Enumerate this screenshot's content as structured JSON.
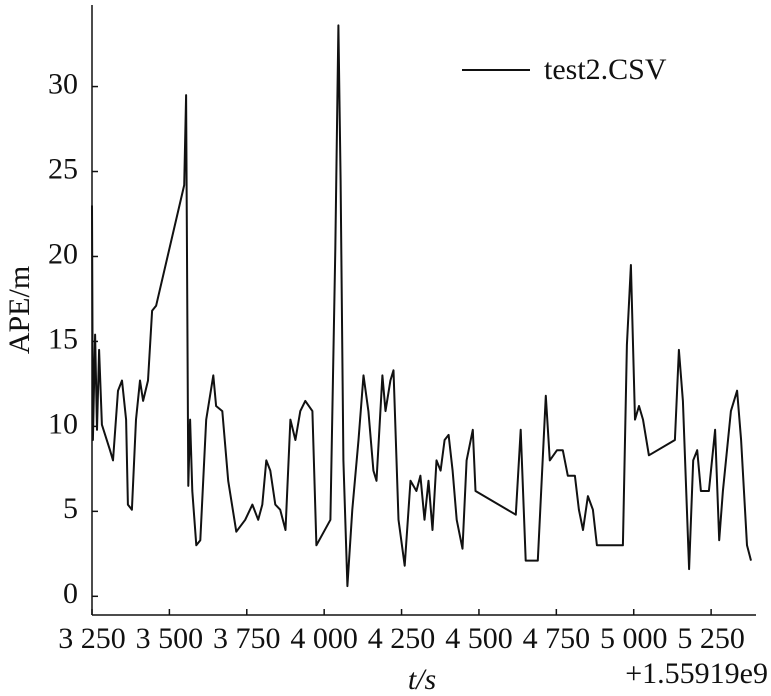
{
  "chart_data": {
    "type": "line",
    "xlabel": "t/s",
    "ylabel": "APE/m",
    "x_offset_label": "+1.55919e9",
    "xlim": [
      3250,
      5395
    ],
    "ylim": [
      -1.1,
      34.8
    ],
    "xticks": [
      {
        "value": 3250,
        "label": "3 250"
      },
      {
        "value": 3500,
        "label": "3 500"
      },
      {
        "value": 3750,
        "label": "3 750"
      },
      {
        "value": 4000,
        "label": "4 000"
      },
      {
        "value": 4250,
        "label": "4 250"
      },
      {
        "value": 4500,
        "label": "4 500"
      },
      {
        "value": 4750,
        "label": "4 750"
      },
      {
        "value": 5000,
        "label": "5 000"
      },
      {
        "value": 5250,
        "label": "5 250"
      }
    ],
    "yticks": [
      0,
      5,
      10,
      15,
      20,
      25,
      30
    ],
    "legend": "upper right",
    "x": [
      3250,
      3253,
      3260,
      3266,
      3273,
      3282,
      3308,
      3318,
      3334,
      3347,
      3360,
      3366,
      3379,
      3392,
      3405,
      3415,
      3431,
      3444,
      3457,
      3548,
      3554,
      3561,
      3567,
      3574,
      3587,
      3600,
      3619,
      3642,
      3651,
      3671,
      3690,
      3716,
      3745,
      3768,
      3787,
      3800,
      3813,
      3826,
      3842,
      3858,
      3875,
      3891,
      3907,
      3923,
      3939,
      3962,
      3975,
      4020,
      4036,
      4046,
      4053,
      4062,
      4075,
      4091,
      4111,
      4127,
      4143,
      4159,
      4169,
      4188,
      4198,
      4214,
      4224,
      4240,
      4260,
      4279,
      4298,
      4311,
      4324,
      4337,
      4350,
      4363,
      4376,
      4389,
      4402,
      4415,
      4428,
      4447,
      4460,
      4480,
      4489,
      4619,
      4635,
      4651,
      4690,
      4716,
      4729,
      4752,
      4771,
      4787,
      4810,
      4823,
      4836,
      4852,
      4868,
      4881,
      4965,
      4978,
      4991,
      5004,
      5017,
      5030,
      5049,
      5133,
      5146,
      5159,
      5179,
      5192,
      5205,
      5217,
      5243,
      5263,
      5276,
      5288,
      5314,
      5334,
      5347,
      5366,
      5379
    ],
    "series": [
      {
        "name": "test2.CSV",
        "color": "#111111",
        "values": [
          23.0,
          9.2,
          15.4,
          9.8,
          14.5,
          10.1,
          8.6,
          8.0,
          12.1,
          12.7,
          10.4,
          5.4,
          5.1,
          10.4,
          12.7,
          11.5,
          12.7,
          16.8,
          17.1,
          24.2,
          29.5,
          6.5,
          10.4,
          6.2,
          3.0,
          3.3,
          10.4,
          13.0,
          11.2,
          10.9,
          6.8,
          3.8,
          4.5,
          5.4,
          4.5,
          5.4,
          8.0,
          7.4,
          5.4,
          5.1,
          3.9,
          10.4,
          9.2,
          10.9,
          11.5,
          10.9,
          3.0,
          4.5,
          20.4,
          33.6,
          24.5,
          8.0,
          0.6,
          5.1,
          9.2,
          13.0,
          10.9,
          7.4,
          6.8,
          13.0,
          10.9,
          12.7,
          13.3,
          4.5,
          1.8,
          6.8,
          6.2,
          7.1,
          4.5,
          6.8,
          3.9,
          8.0,
          7.4,
          9.2,
          9.5,
          7.4,
          4.5,
          2.8,
          8.0,
          9.8,
          6.2,
          4.8,
          9.8,
          2.1,
          2.1,
          11.8,
          8.0,
          8.6,
          8.6,
          7.1,
          7.1,
          5.1,
          3.9,
          5.9,
          5.1,
          3.0,
          3.0,
          14.8,
          19.5,
          10.4,
          11.2,
          10.4,
          8.3,
          9.2,
          14.5,
          11.5,
          1.6,
          8.0,
          8.6,
          6.2,
          6.2,
          9.8,
          3.3,
          6.2,
          10.9,
          12.1,
          9.2,
          3.0,
          2.1
        ]
      }
    ]
  }
}
